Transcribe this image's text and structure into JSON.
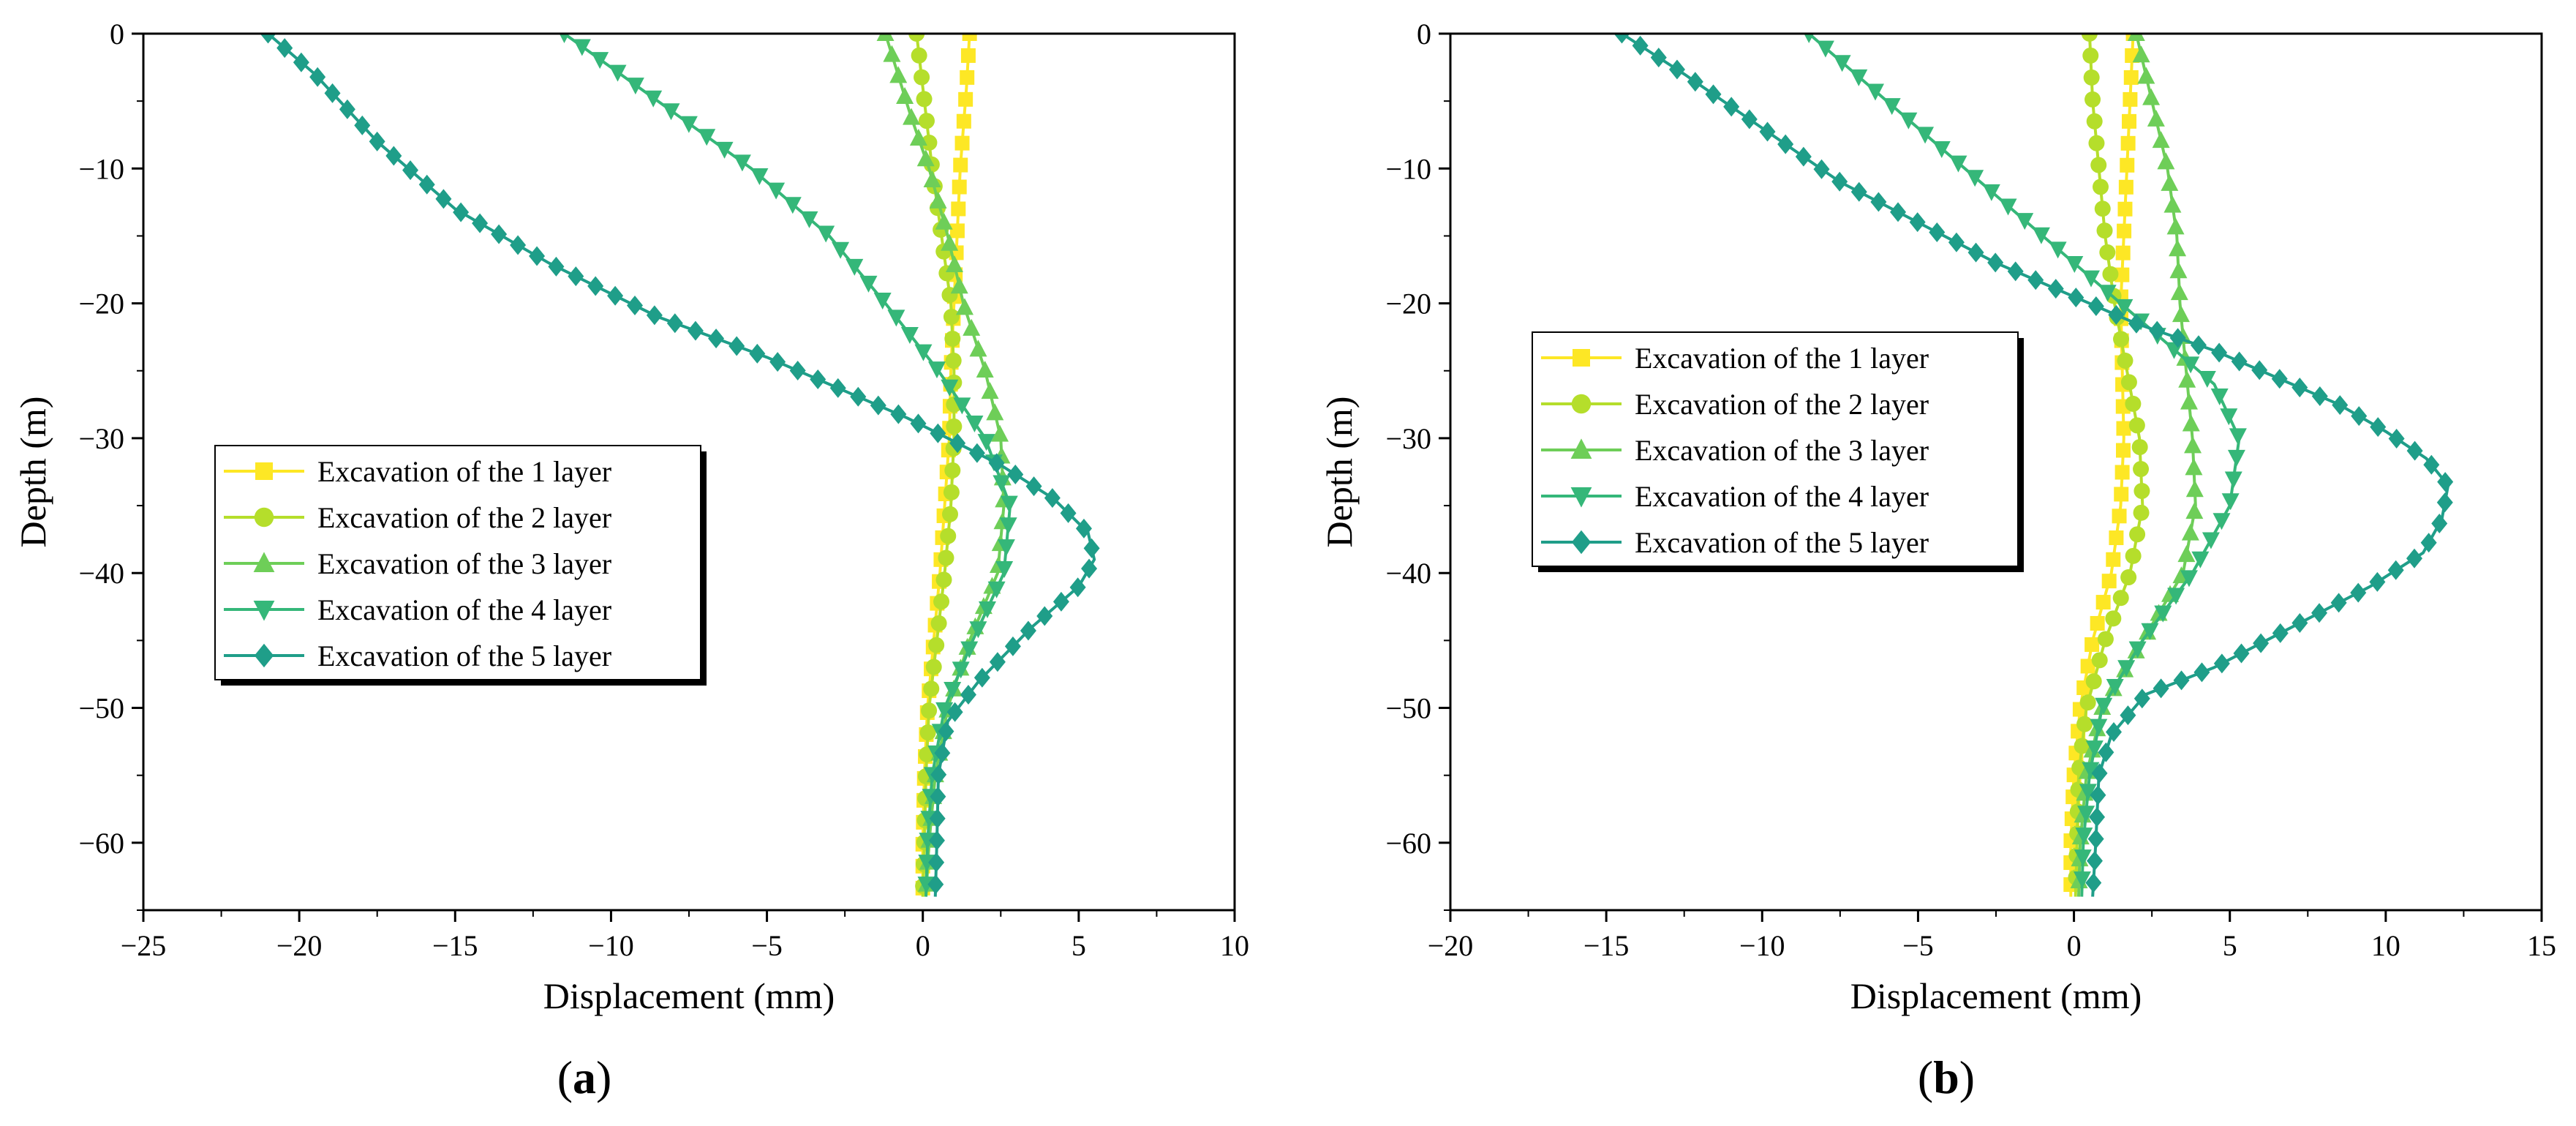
{
  "series_style": {
    "colors": [
      "#fde725",
      "#b5de2b",
      "#6ece58",
      "#35b779",
      "#1f9e89"
    ],
    "markers": [
      "square",
      "circle",
      "triangle-up",
      "triangle-down",
      "diamond"
    ]
  },
  "chart_data": [
    {
      "type": "line",
      "panel": "a",
      "caption": {
        "open": "(",
        "letter": "a",
        "close": ")"
      },
      "xlabel": "Displacement (mm)",
      "ylabel": "Depth (m)",
      "xlim": [
        -25,
        10
      ],
      "ylim": [
        -65,
        0
      ],
      "xticks": [
        -25,
        -20,
        -15,
        -10,
        -5,
        0,
        5,
        10
      ],
      "yticks": [
        0,
        -10,
        -20,
        -30,
        -40,
        -50,
        -60
      ],
      "legend_position": "center-left",
      "series": [
        {
          "name": "Excavation of the 1 layer",
          "points": [
            [
              1.5,
              0
            ],
            [
              1.4,
              -4
            ],
            [
              1.2,
              -10
            ],
            [
              1.1,
              -15
            ],
            [
              1.0,
              -20
            ],
            [
              0.9,
              -25
            ],
            [
              0.85,
              -30
            ],
            [
              0.7,
              -35
            ],
            [
              0.55,
              -40
            ],
            [
              0.35,
              -45
            ],
            [
              0.15,
              -50
            ],
            [
              0.05,
              -55
            ],
            [
              0.0,
              -60
            ],
            [
              0.0,
              -64
            ]
          ]
        },
        {
          "name": "Excavation of the 2 layer",
          "points": [
            [
              -0.2,
              0
            ],
            [
              0.05,
              -5
            ],
            [
              0.3,
              -10
            ],
            [
              0.6,
              -15
            ],
            [
              0.9,
              -20
            ],
            [
              1.0,
              -25
            ],
            [
              1.0,
              -30
            ],
            [
              0.9,
              -35
            ],
            [
              0.7,
              -40
            ],
            [
              0.45,
              -45
            ],
            [
              0.2,
              -50
            ],
            [
              0.1,
              -55
            ],
            [
              0.05,
              -60
            ],
            [
              0.0,
              -64
            ]
          ]
        },
        {
          "name": "Excavation of the 3 layer",
          "points": [
            [
              -1.2,
              0
            ],
            [
              -0.8,
              -3
            ],
            [
              -0.4,
              -6
            ],
            [
              0.2,
              -10
            ],
            [
              0.8,
              -15
            ],
            [
              1.3,
              -20
            ],
            [
              2.0,
              -25
            ],
            [
              2.5,
              -30
            ],
            [
              2.6,
              -35
            ],
            [
              2.4,
              -40
            ],
            [
              1.5,
              -45
            ],
            [
              0.8,
              -50
            ],
            [
              0.4,
              -55
            ],
            [
              0.2,
              -60
            ],
            [
              0.1,
              -64
            ]
          ]
        },
        {
          "name": "Excavation of the 4 layer",
          "points": [
            [
              -11.5,
              0
            ],
            [
              -8.5,
              -5
            ],
            [
              -5.5,
              -10
            ],
            [
              -3.0,
              -15
            ],
            [
              -1.2,
              -20
            ],
            [
              0.5,
              -25
            ],
            [
              2.0,
              -30
            ],
            [
              2.8,
              -35
            ],
            [
              2.6,
              -40
            ],
            [
              1.6,
              -45
            ],
            [
              0.7,
              -50
            ],
            [
              0.3,
              -55
            ],
            [
              0.15,
              -60
            ],
            [
              0.1,
              -64
            ]
          ]
        },
        {
          "name": "Excavation of the 5 layer",
          "points": [
            [
              -21.0,
              0
            ],
            [
              -19.5,
              -3
            ],
            [
              -17.5,
              -8
            ],
            [
              -15.0,
              -13
            ],
            [
              -12.0,
              -17
            ],
            [
              -8.5,
              -21
            ],
            [
              -5.0,
              -24
            ],
            [
              -2.5,
              -26.5
            ],
            [
              -0.5,
              -28.5
            ],
            [
              0.8,
              -30
            ],
            [
              2.5,
              -32
            ],
            [
              4.2,
              -34.5
            ],
            [
              5.3,
              -37
            ],
            [
              5.5,
              -39
            ],
            [
              5.0,
              -41
            ],
            [
              3.5,
              -44
            ],
            [
              1.8,
              -48
            ],
            [
              0.8,
              -51
            ],
            [
              0.5,
              -55
            ],
            [
              0.45,
              -60
            ],
            [
              0.4,
              -64
            ]
          ]
        }
      ]
    },
    {
      "type": "line",
      "panel": "b",
      "caption": {
        "open": "(",
        "letter": "b",
        "close": ")"
      },
      "xlabel": "Displacement (mm)",
      "ylabel": "Depth (m)",
      "xlim": [
        -20,
        15
      ],
      "ylim": [
        -65,
        0
      ],
      "xticks": [
        -20,
        -15,
        -10,
        -5,
        0,
        5,
        10,
        15
      ],
      "yticks": [
        0,
        -10,
        -20,
        -30,
        -40,
        -50,
        -60
      ],
      "legend_position": "center-left",
      "series": [
        {
          "name": "Excavation of the 1 layer",
          "points": [
            [
              1.9,
              0
            ],
            [
              1.8,
              -5
            ],
            [
              1.7,
              -10
            ],
            [
              1.6,
              -15
            ],
            [
              1.5,
              -20
            ],
            [
              1.55,
              -25
            ],
            [
              1.6,
              -30
            ],
            [
              1.5,
              -35
            ],
            [
              1.2,
              -40
            ],
            [
              0.6,
              -45
            ],
            [
              0.2,
              -50
            ],
            [
              0.0,
              -55
            ],
            [
              -0.1,
              -60
            ],
            [
              -0.1,
              -64
            ]
          ]
        },
        {
          "name": "Excavation of the 2 layer",
          "points": [
            [
              0.5,
              0
            ],
            [
              0.6,
              -5
            ],
            [
              0.8,
              -10
            ],
            [
              1.0,
              -15
            ],
            [
              1.3,
              -20
            ],
            [
              1.7,
              -25
            ],
            [
              2.1,
              -30
            ],
            [
              2.2,
              -35
            ],
            [
              1.8,
              -40
            ],
            [
              1.0,
              -45
            ],
            [
              0.4,
              -50
            ],
            [
              0.15,
              -55
            ],
            [
              0.1,
              -60
            ],
            [
              0.05,
              -64
            ]
          ]
        },
        {
          "name": "Excavation of the 3 layer",
          "points": [
            [
              2.0,
              0
            ],
            [
              2.5,
              -5
            ],
            [
              3.0,
              -10
            ],
            [
              3.3,
              -15
            ],
            [
              3.4,
              -20
            ],
            [
              3.6,
              -25
            ],
            [
              3.8,
              -30
            ],
            [
              3.9,
              -35
            ],
            [
              3.5,
              -40
            ],
            [
              2.2,
              -45
            ],
            [
              0.9,
              -50
            ],
            [
              0.4,
              -55
            ],
            [
              0.2,
              -60
            ],
            [
              0.15,
              -64
            ]
          ]
        },
        {
          "name": "Excavation of the 4 layer",
          "points": [
            [
              -8.5,
              0
            ],
            [
              -6.0,
              -5
            ],
            [
              -3.5,
              -10
            ],
            [
              -1.0,
              -15
            ],
            [
              1.5,
              -20
            ],
            [
              3.0,
              -23
            ],
            [
              4.5,
              -26
            ],
            [
              5.3,
              -30
            ],
            [
              5.0,
              -35
            ],
            [
              3.8,
              -40
            ],
            [
              2.2,
              -45
            ],
            [
              0.9,
              -50
            ],
            [
              0.5,
              -55
            ],
            [
              0.3,
              -60
            ],
            [
              0.25,
              -64
            ]
          ]
        },
        {
          "name": "Excavation of the 5 layer",
          "points": [
            [
              -14.5,
              0
            ],
            [
              -12.5,
              -3
            ],
            [
              -10.0,
              -7
            ],
            [
              -7.5,
              -11
            ],
            [
              -5.0,
              -14
            ],
            [
              -2.5,
              -17
            ],
            [
              0.0,
              -19.5
            ],
            [
              2.0,
              -21.5
            ],
            [
              4.5,
              -23.5
            ],
            [
              6.5,
              -25.5
            ],
            [
              8.5,
              -27.5
            ],
            [
              10.0,
              -29.5
            ],
            [
              11.3,
              -31.5
            ],
            [
              12.0,
              -33.5
            ],
            [
              11.8,
              -36
            ],
            [
              11.2,
              -38.5
            ],
            [
              9.5,
              -41
            ],
            [
              7.0,
              -44
            ],
            [
              4.5,
              -47
            ],
            [
              2.3,
              -49
            ],
            [
              1.2,
              -52
            ],
            [
              0.8,
              -55
            ],
            [
              0.7,
              -60
            ],
            [
              0.6,
              -64
            ]
          ]
        }
      ]
    }
  ]
}
